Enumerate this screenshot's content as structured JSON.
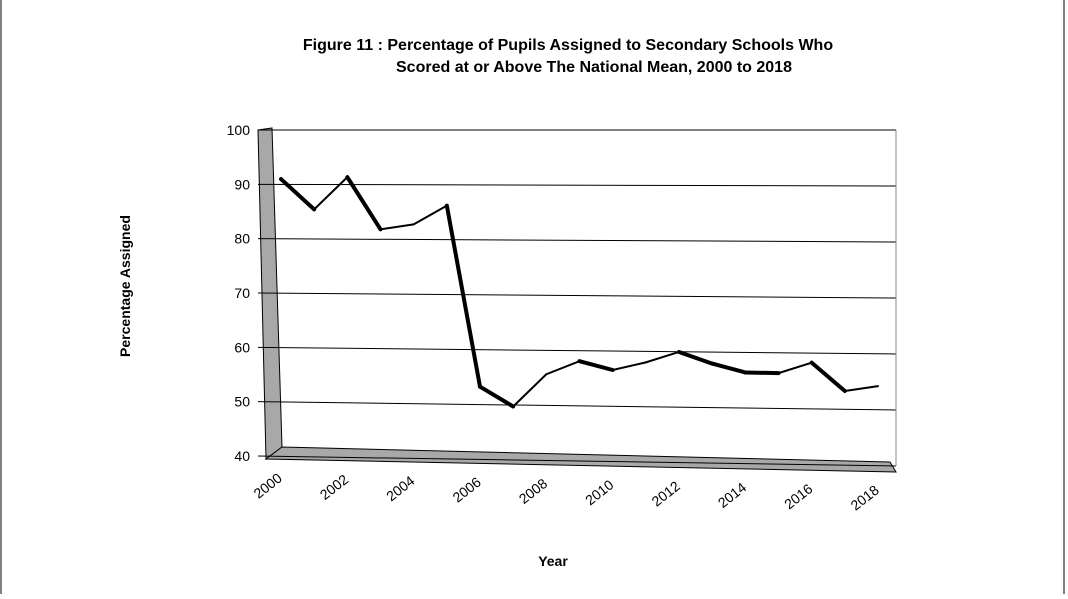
{
  "chart_data": {
    "type": "line",
    "title_lines": [
      "Figure 11 : Percentage of Pupils Assigned to Secondary Schools Who",
      "Scored at or Above The National Mean, 2000 to 2018"
    ],
    "xlabel": "Year",
    "ylabel": "Percentage Assigned",
    "ylim": [
      40,
      100
    ],
    "yticks": [
      "100",
      "90",
      "80",
      "70",
      "60",
      "50",
      "40"
    ],
    "xtick_labels": [
      "2000",
      "2002",
      "2004",
      "2006",
      "2008",
      "2010",
      "2012",
      "2014",
      "2016",
      "2018"
    ],
    "x": [
      2000,
      2001,
      2002,
      2003,
      2004,
      2005,
      2006,
      2007,
      2008,
      2009,
      2010,
      2011,
      2012,
      2013,
      2014,
      2015,
      2016,
      2017,
      2018
    ],
    "values": [
      89.5,
      84,
      90,
      80.5,
      81.5,
      85,
      52,
      48.5,
      54.5,
      57,
      55.5,
      57,
      59,
      57,
      55.5,
      55.5,
      57.5,
      52.5,
      53.5
    ],
    "grid": true,
    "style": "3d-line"
  }
}
